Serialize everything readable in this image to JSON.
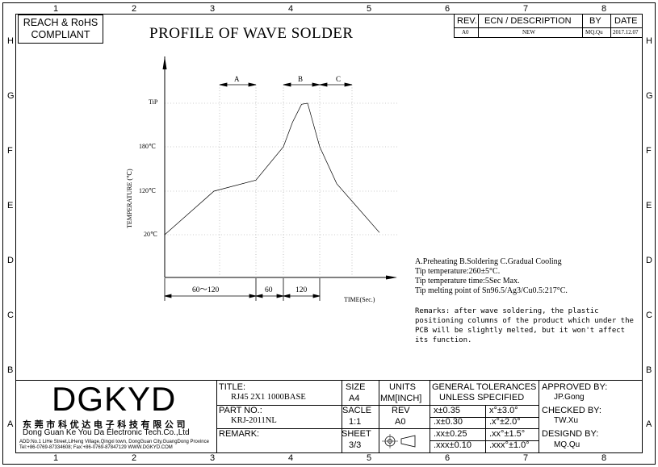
{
  "frame": {
    "columns": [
      "1",
      "2",
      "3",
      "4",
      "5",
      "6",
      "7",
      "8"
    ],
    "rows": [
      "H",
      "G",
      "F",
      "E",
      "D",
      "C",
      "B",
      "A"
    ]
  },
  "compliance": {
    "line1": "REACH & RoHS",
    "line2": "COMPLIANT"
  },
  "drawing_title": "PROFILE OF WAVE SOLDER",
  "revision_table": {
    "headers": [
      "REV.",
      "ECN / DESCRIPTION",
      "BY",
      "DATE"
    ],
    "row": [
      "A0",
      "NEW",
      "MQ.Qu",
      "2017.12.07"
    ]
  },
  "chart_data": {
    "type": "line",
    "title": "",
    "xlabel": "TIME(Sec.)",
    "ylabel": "TEMPERATURE (℃)",
    "y_ticks": [
      "20℃",
      "120℃",
      "180℃",
      "TiP"
    ],
    "phases": [
      {
        "label": "A",
        "name": "Preheating"
      },
      {
        "label": "B",
        "name": "Soldering"
      },
      {
        "label": "C",
        "name": "Gradual Cooling"
      }
    ],
    "duration_labels": [
      "60～120",
      "60",
      "120"
    ],
    "series": [
      {
        "points": [
          [
            0,
            20
          ],
          [
            60,
            120
          ],
          [
            120,
            135
          ],
          [
            160,
            180
          ],
          [
            175,
            225
          ],
          [
            190,
            258
          ],
          [
            200,
            260
          ],
          [
            220,
            180
          ],
          [
            240,
            130
          ],
          [
            290,
            25
          ]
        ]
      }
    ],
    "grid": "dotted"
  },
  "notes": [
    "A.Preheating  B.Soldering  C.Gradual Cooling",
    "Tip temperature:260±5°C.",
    "Tip temperature time:5Sec Max.",
    "Tip melting point of Sn96.5/Ag3/Cu0.5:217°C."
  ],
  "remarks": "Remarks: after wave soldering, the plastic positioning columns of the product  which under the PCB will be slightly melted, but it won't affect its function.",
  "title_block": {
    "logo": "DGKYD",
    "company_cn": "东 莞 市 科 优 达 电 子 科 技 有 限 公 司",
    "company_en": "Dong Guan Ke You Da Electronic Tech.Co.,Ltd",
    "address": "ADD:No.1 LiHe Street,LiHeng Village,Qingxi town, DongGuan City,GuangDong Province",
    "contact": "Tel:+86-0769-87334608;  Fax:+86-0769-87847129  WWW.DGKYD.COM",
    "title_label": "TITLE:",
    "title_value": "RJ45 2X1 1000BASE",
    "part_label": "PART NO.:",
    "part_value": "KRJ-2011NL",
    "remark_label": "REMARK:",
    "size_label": "SIZE",
    "size_value": "A4",
    "units_label": "UNITS",
    "units_value": "MM[INCH]",
    "scale_label": "SACLE",
    "scale_value": "1:1",
    "rev_label": "REV",
    "rev_value": "A0",
    "sheet_label": "SHEET",
    "sheet_value": "3/3",
    "tol_title1": "GENERAL TOLERANCES",
    "tol_title2": "UNLESS SPECIFIED",
    "tolerances": [
      [
        "x±0.35",
        "x°±3.0°"
      ],
      [
        ".x±0.30",
        ".x°±2.0°"
      ],
      [
        ".xx±0.25",
        ".xx°±1.5°"
      ],
      [
        ".xxx±0.10",
        ".xxx°±1.0°"
      ]
    ],
    "approved_label": "APPROVED BY:",
    "approved_value": "JP.Gong",
    "checked_label": "CHECKED BY:",
    "checked_value": "TW.Xu",
    "designed_label": "DESIGND BY:",
    "designed_value": "MQ.Qu"
  }
}
